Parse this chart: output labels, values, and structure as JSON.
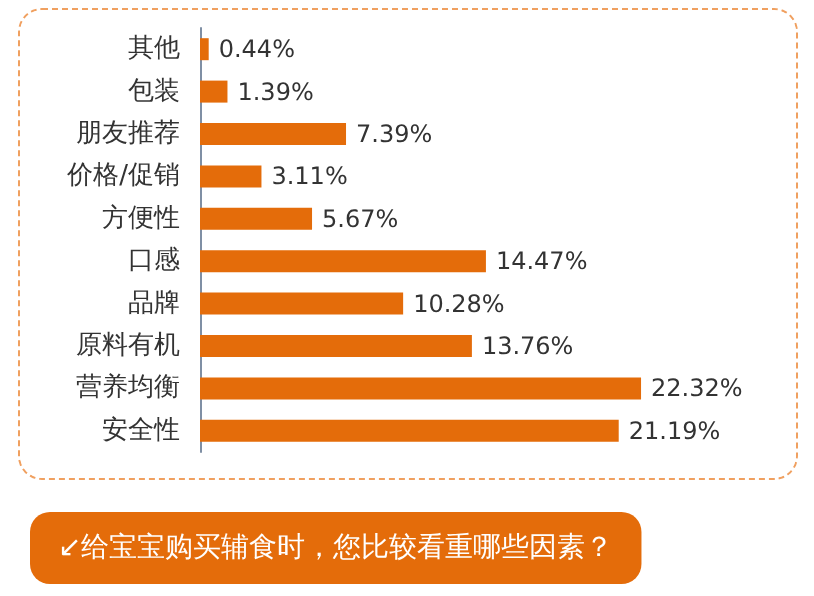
{
  "chart_data": {
    "type": "bar",
    "orientation": "horizontal",
    "title": "↙给宝宝购买辅食时，您比较看重哪些因素？",
    "categories": [
      "其他",
      "包装",
      "朋友推荐",
      "价格/促销",
      "方便性",
      "口感",
      "品牌",
      "原料有机",
      "营养均衡",
      "安全性"
    ],
    "values": [
      0.44,
      1.39,
      7.39,
      3.11,
      5.67,
      14.47,
      10.28,
      13.76,
      22.32,
      21.19
    ],
    "value_labels": [
      "0.44%",
      "1.39%",
      "7.39%",
      "3.11%",
      "5.67%",
      "14.47%",
      "10.28%",
      "13.76%",
      "22.32%",
      "21.19%"
    ],
    "color": "#e46c0a"
  }
}
